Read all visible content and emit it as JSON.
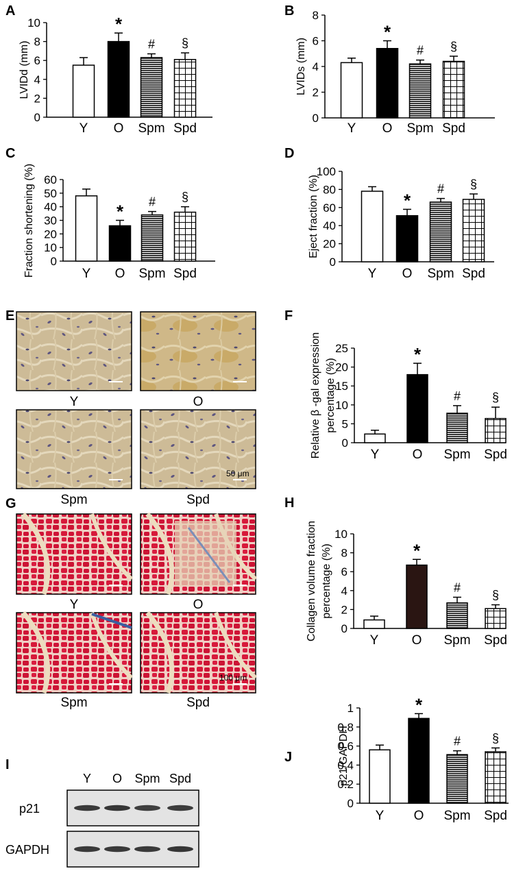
{
  "figure": {
    "panel_letters": [
      "A",
      "B",
      "C",
      "D",
      "E",
      "F",
      "G",
      "H",
      "I",
      "J"
    ],
    "scale_bar_e": "50 μm",
    "scale_bar_g": "100 μm",
    "histology_e_labels": [
      "Y",
      "O",
      "Spm",
      "Spd"
    ],
    "histology_g_labels": [
      "Y",
      "O",
      "Spm",
      "Spd"
    ],
    "blot": {
      "lanes": [
        "Y",
        "O",
        "Spm",
        "Spd"
      ],
      "rows": [
        "p21",
        "GAPDH"
      ],
      "intensity": {
        "p21": [
          0.88,
          0.9,
          0.85,
          0.87
        ],
        "GAPDH": [
          0.88,
          0.88,
          0.88,
          0.9
        ]
      }
    }
  },
  "chart_data": [
    {
      "id": "A",
      "type": "bar",
      "categories": [
        "Y",
        "O",
        "Spm",
        "Spd"
      ],
      "values": [
        5.5,
        8.0,
        6.3,
        6.1
      ],
      "errors": [
        0.8,
        0.9,
        0.4,
        0.7
      ],
      "markers": [
        "",
        "*",
        "#",
        "§"
      ],
      "ylabel": "LVIDd  (mm)",
      "ylim": [
        0,
        10
      ],
      "yticks": [
        0,
        2,
        4,
        6,
        8,
        10
      ],
      "fills": [
        "white",
        "black",
        "hstripe",
        "grid"
      ]
    },
    {
      "id": "B",
      "type": "bar",
      "categories": [
        "Y",
        "O",
        "Spm",
        "Spd"
      ],
      "values": [
        4.3,
        5.4,
        4.2,
        4.4
      ],
      "errors": [
        0.35,
        0.6,
        0.3,
        0.4
      ],
      "markers": [
        "",
        "*",
        "#",
        "§"
      ],
      "ylabel": "LVIDs  (mm)",
      "ylim": [
        0,
        8
      ],
      "yticks": [
        0,
        2,
        4,
        6,
        8
      ],
      "fills": [
        "white",
        "black",
        "hstripe",
        "grid"
      ]
    },
    {
      "id": "C",
      "type": "bar",
      "categories": [
        "Y",
        "O",
        "Spm",
        "Spd"
      ],
      "values": [
        48,
        26,
        34,
        36
      ],
      "errors": [
        5,
        4,
        2.5,
        4
      ],
      "markers": [
        "",
        "*",
        "#",
        "§"
      ],
      "ylabel": "Fraction shortening  (%)",
      "ylim": [
        0,
        60
      ],
      "yticks": [
        0,
        10,
        20,
        30,
        40,
        50,
        60
      ],
      "fills": [
        "white",
        "black",
        "hstripe",
        "grid"
      ]
    },
    {
      "id": "D",
      "type": "bar",
      "categories": [
        "Y",
        "O",
        "Spm",
        "Spd"
      ],
      "values": [
        78,
        51,
        66,
        69
      ],
      "errors": [
        5,
        7,
        4,
        6
      ],
      "markers": [
        "",
        "*",
        "#",
        "§"
      ],
      "ylabel": "Eject fraction  (%)",
      "ylim": [
        0,
        100
      ],
      "yticks": [
        0,
        20,
        40,
        60,
        80,
        100
      ],
      "fills": [
        "white",
        "black",
        "hstripe",
        "grid"
      ]
    },
    {
      "id": "F",
      "type": "bar",
      "categories": [
        "Y",
        "O",
        "Spm",
        "Spd"
      ],
      "values": [
        2.3,
        18.0,
        7.8,
        6.4
      ],
      "errors": [
        1.0,
        3.0,
        2.0,
        3.0
      ],
      "markers": [
        "",
        "*",
        "#",
        "§"
      ],
      "ylabel": [
        "Relative β -gal expression",
        "percentage (%)"
      ],
      "ylim": [
        0,
        25
      ],
      "yticks": [
        0,
        5,
        10,
        15,
        20,
        25
      ],
      "fills": [
        "white",
        "black",
        "hstripe",
        "grid"
      ]
    },
    {
      "id": "H",
      "type": "bar",
      "categories": [
        "Y",
        "O",
        "Spm",
        "Spd"
      ],
      "values": [
        0.9,
        6.7,
        2.7,
        2.1
      ],
      "errors": [
        0.4,
        0.6,
        0.6,
        0.4
      ],
      "markers": [
        "",
        "*",
        "#",
        "§"
      ],
      "ylabel": [
        "Collagen volume fraction",
        "percentage (%)"
      ],
      "ylim": [
        0,
        10
      ],
      "yticks": [
        0,
        2,
        4,
        6,
        8,
        10
      ],
      "fills": [
        "white",
        "brown",
        "hstripe",
        "grid"
      ]
    },
    {
      "id": "J",
      "type": "bar",
      "categories": [
        "Y",
        "O",
        "Spm",
        "Spd"
      ],
      "values": [
        0.56,
        0.89,
        0.51,
        0.54
      ],
      "errors": [
        0.05,
        0.05,
        0.04,
        0.04
      ],
      "markers": [
        "",
        "*",
        "#",
        "§"
      ],
      "ylabel": "p21/GAPDH",
      "ylim": [
        0,
        1
      ],
      "yticks": [
        0,
        0.2,
        0.4,
        0.6,
        0.8,
        1
      ],
      "fills": [
        "white",
        "black",
        "hstripe",
        "grid"
      ]
    }
  ]
}
